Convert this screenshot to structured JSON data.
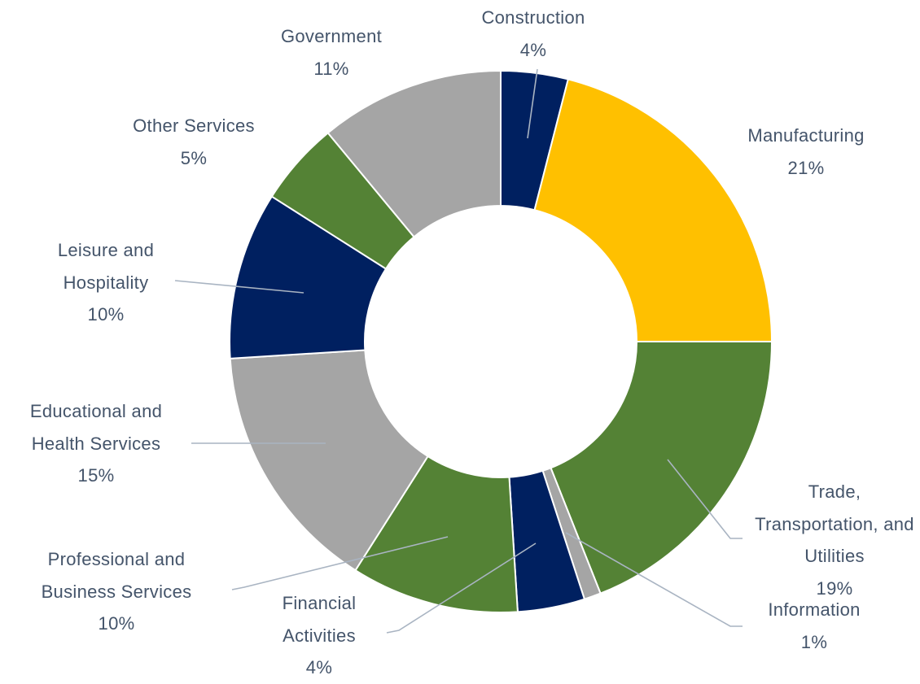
{
  "chart_data": {
    "type": "donut",
    "categories": [
      "Construction",
      "Manufacturing",
      "Trade, Transportation, and Utilities",
      "Information",
      "Financial Activities",
      "Professional and Business Services",
      "Educational and Health Services",
      "Leisure and Hospitality",
      "Other Services",
      "Government"
    ],
    "values": [
      4,
      21,
      19,
      1,
      4,
      10,
      15,
      10,
      5,
      11
    ],
    "value_labels": [
      "4%",
      "21%",
      "19%",
      "1%",
      "4%",
      "10%",
      "15%",
      "10%",
      "5%",
      "11%"
    ],
    "colors": [
      "#002060",
      "#FFC000",
      "#548235",
      "#A5A5A5",
      "#002060",
      "#548235",
      "#A5A5A5",
      "#002060",
      "#548235",
      "#A5A5A5"
    ]
  }
}
